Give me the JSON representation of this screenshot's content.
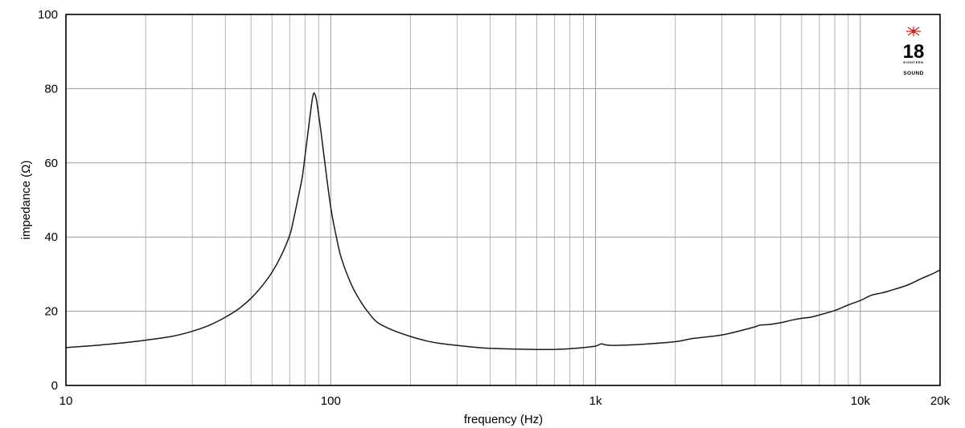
{
  "chart_data": {
    "type": "line",
    "xlabel": "frequency (Hz)",
    "ylabel": "impedance (Ω)",
    "x_scale": "log",
    "xlim": [
      10,
      20000
    ],
    "ylim": [
      0,
      100
    ],
    "x_ticks": [
      {
        "value": 10,
        "label": "10"
      },
      {
        "value": 100,
        "label": "100"
      },
      {
        "value": 1000,
        "label": "1k"
      },
      {
        "value": 10000,
        "label": "10k"
      },
      {
        "value": 20000,
        "label": "20k"
      }
    ],
    "y_ticks": [
      0,
      20,
      40,
      60,
      80,
      100
    ],
    "grid": true,
    "series": [
      {
        "color": "#1a1a1a",
        "x": [
          10,
          12,
          15,
          18,
          20,
          25,
          30,
          35,
          40,
          45,
          50,
          55,
          60,
          65,
          70,
          72,
          75,
          78,
          80,
          82,
          84,
          86,
          88,
          90,
          92,
          95,
          100,
          105,
          110,
          120,
          130,
          140,
          150,
          170,
          200,
          230,
          260,
          300,
          350,
          400,
          500,
          600,
          700,
          800,
          900,
          1000,
          1050,
          1100,
          1200,
          1500,
          2000,
          2300,
          2500,
          3000,
          3500,
          4000,
          4200,
          4500,
          5000,
          5500,
          6000,
          6500,
          7000,
          8000,
          9000,
          10000,
          11000,
          12000,
          13000,
          15000,
          17000,
          19000,
          20000
        ],
        "y": [
          10.2,
          10.6,
          11.2,
          11.8,
          12.2,
          13.2,
          14.6,
          16.3,
          18.4,
          20.7,
          23.5,
          26.8,
          30.5,
          35,
          40.5,
          44,
          50,
          56,
          62,
          68,
          74,
          78.6,
          77.5,
          73,
          68,
          60,
          48,
          40,
          34,
          27,
          22.5,
          19.3,
          17,
          15,
          13.2,
          12,
          11.3,
          10.8,
          10.3,
          10,
          9.8,
          9.7,
          9.7,
          9.9,
          10.2,
          10.6,
          11.2,
          10.9,
          10.8,
          11.1,
          11.8,
          12.6,
          12.9,
          13.6,
          14.7,
          15.8,
          16.3,
          16.4,
          16.9,
          17.6,
          18.1,
          18.4,
          19,
          20.2,
          21.7,
          22.9,
          24.3,
          24.9,
          25.6,
          27,
          28.8,
          30.3,
          31.2
        ]
      }
    ]
  },
  "logo": {
    "number": "18",
    "small_text": "EIGHTEEN",
    "sound_text": "SOUND",
    "accent_color": "#d6231e"
  }
}
